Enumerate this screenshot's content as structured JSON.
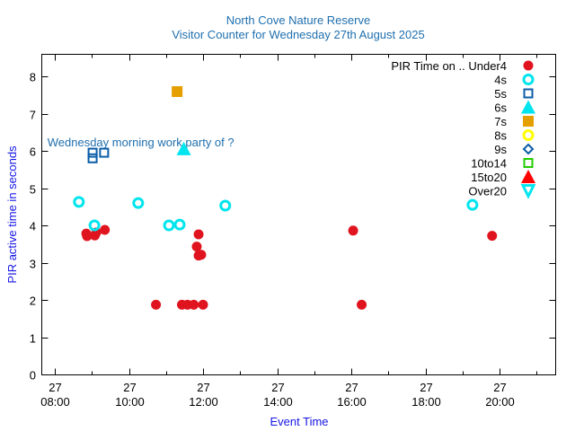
{
  "chart_data": {
    "type": "scatter",
    "title": "North Cove Nature Reserve",
    "subtitle": "Visitor Counter for Wednesday 27th August 2025",
    "xlabel": "Event Time",
    "ylabel": "PIR active time in seconds",
    "xlim_hours": [
      7.64,
      21.5
    ],
    "ylim": [
      0,
      8.6
    ],
    "x_ticks": [
      {
        "hour": 8,
        "day": "27",
        "time": "08:00"
      },
      {
        "hour": 10,
        "day": "27",
        "time": "10:00"
      },
      {
        "hour": 12,
        "day": "27",
        "time": "12:00"
      },
      {
        "hour": 14,
        "day": "27",
        "time": "14:00"
      },
      {
        "hour": 16,
        "day": "27",
        "time": "16:00"
      },
      {
        "hour": 18,
        "day": "27",
        "time": "18:00"
      },
      {
        "hour": 20,
        "day": "27",
        "time": "20:00"
      }
    ],
    "x_minor_ticks": [
      9,
      11,
      13,
      15,
      17,
      19,
      21
    ],
    "y_ticks": [
      "0",
      "1",
      "2",
      "3",
      "4",
      "5",
      "6",
      "7",
      "8"
    ],
    "grid": false,
    "legend_title": "PIR Time on ..",
    "legend_position": "top-right",
    "annotation": {
      "text": "Wednesday morning work party of ?",
      "hour": 7.8,
      "y": 6.24
    },
    "series": [
      {
        "name": "Under4",
        "marker": "circle-filled",
        "color": "#e0141e",
        "points": [
          [
            8.85,
            3.78
          ],
          [
            8.87,
            3.71
          ],
          [
            9.08,
            3.73
          ],
          [
            9.12,
            3.81
          ],
          [
            9.35,
            3.88
          ],
          [
            10.73,
            1.87
          ],
          [
            11.43,
            1.87
          ],
          [
            11.58,
            1.87
          ],
          [
            11.75,
            1.87
          ],
          [
            11.88,
            3.76
          ],
          [
            11.83,
            3.43
          ],
          [
            11.88,
            3.19
          ],
          [
            11.95,
            3.21
          ],
          [
            12.0,
            1.87
          ],
          [
            16.05,
            3.86
          ],
          [
            16.28,
            1.87
          ],
          [
            19.8,
            3.72
          ]
        ]
      },
      {
        "name": "4s",
        "marker": "circle-open",
        "color": "#00e5ee",
        "points": [
          [
            8.65,
            4.63
          ],
          [
            9.07,
            4.0
          ],
          [
            10.25,
            4.6
          ],
          [
            11.08,
            4.0
          ],
          [
            11.37,
            4.02
          ],
          [
            12.6,
            4.53
          ],
          [
            19.27,
            4.55
          ]
        ]
      },
      {
        "name": "5s",
        "marker": "square-open",
        "color": "#0b5da9",
        "points": [
          [
            9.02,
            5.95
          ],
          [
            9.02,
            5.8
          ],
          [
            9.33,
            5.95
          ]
        ]
      },
      {
        "name": "6s",
        "marker": "triangle-filled",
        "color": "#00e5ee",
        "points": [
          [
            11.48,
            6.05
          ]
        ]
      },
      {
        "name": "7s",
        "marker": "square-filled",
        "color": "#e69f00",
        "points": [
          [
            11.3,
            7.59
          ]
        ]
      },
      {
        "name": "8s",
        "marker": "circle-open",
        "color": "#ffff00",
        "points": []
      },
      {
        "name": "9s",
        "marker": "diamond-open",
        "color": "#0b5da9",
        "points": []
      },
      {
        "name": "10to14",
        "marker": "square-open",
        "color": "#22cc00",
        "points": []
      },
      {
        "name": "15to20",
        "marker": "triangle-filled",
        "color": "#ff0000",
        "points": []
      },
      {
        "name": "Over20",
        "marker": "triangle-down-open",
        "color": "#00e5ee",
        "points": []
      }
    ]
  }
}
